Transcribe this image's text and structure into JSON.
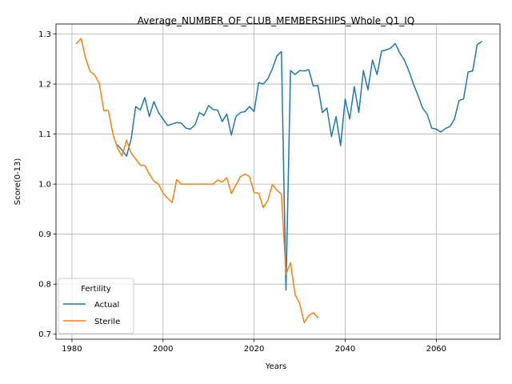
{
  "chart_data": {
    "type": "line",
    "title": "Average_NUMBER_OF_CLUB_MEMBERSHIPS_Whole_Q1_IQ",
    "xlabel": "Years",
    "ylabel": "Score(0-13)",
    "xlim": [
      1976.5,
      2074
    ],
    "ylim": [
      0.69,
      1.32
    ],
    "xticks": [
      1980,
      2000,
      2020,
      2040,
      2060
    ],
    "yticks": [
      0.7,
      0.8,
      0.9,
      1.0,
      1.1,
      1.2,
      1.3
    ],
    "grid": true,
    "legend": {
      "title": "Fertility",
      "position": "lower-left"
    },
    "series": [
      {
        "name": "Actual",
        "color": "#1f77b4",
        "x": [
          1990,
          1991,
          1992,
          1993,
          1994,
          1995,
          1996,
          1997,
          1998,
          1999,
          2000,
          2001,
          2002,
          2003,
          2004,
          2005,
          2006,
          2007,
          2008,
          2009,
          2010,
          2011,
          2012,
          2013,
          2014,
          2015,
          2016,
          2017,
          2018,
          2019,
          2020,
          2021,
          2022,
          2023,
          2024,
          2025,
          2026,
          2027,
          2028,
          2029,
          2030,
          2031,
          2032,
          2033,
          2034,
          2035,
          2036,
          2037,
          2038,
          2039,
          2040,
          2041,
          2042,
          2043,
          2044,
          2045,
          2046,
          2047,
          2048,
          2049,
          2050,
          2051,
          2052,
          2053,
          2054,
          2055,
          2056,
          2057,
          2058,
          2059,
          2060,
          2061,
          2062,
          2063,
          2064,
          2065,
          2066,
          2067,
          2068,
          2069,
          2070
        ],
        "values": [
          1.078,
          1.068,
          1.056,
          1.09,
          1.155,
          1.148,
          1.173,
          1.135,
          1.165,
          1.143,
          1.13,
          1.117,
          1.12,
          1.123,
          1.122,
          1.112,
          1.11,
          1.118,
          1.143,
          1.137,
          1.157,
          1.149,
          1.148,
          1.125,
          1.14,
          1.098,
          1.135,
          1.143,
          1.145,
          1.155,
          1.145,
          1.203,
          1.2,
          1.21,
          1.23,
          1.256,
          1.265,
          0.788,
          1.227,
          1.219,
          1.227,
          1.226,
          1.229,
          1.196,
          1.197,
          1.143,
          1.152,
          1.095,
          1.135,
          1.077,
          1.17,
          1.13,
          1.195,
          1.143,
          1.227,
          1.188,
          1.248,
          1.219,
          1.266,
          1.268,
          1.272,
          1.281,
          1.262,
          1.248,
          1.226,
          1.2,
          1.177,
          1.152,
          1.14,
          1.112,
          1.11,
          1.104,
          1.111,
          1.115,
          1.13,
          1.167,
          1.17,
          1.224,
          1.226,
          1.279,
          1.285
        ]
      },
      {
        "name": "Sterile",
        "color": "#ff7f0e",
        "x": [
          1981,
          1982,
          1983,
          1984,
          1985,
          1986,
          1987,
          1988,
          1989,
          1990,
          1991,
          1992,
          1993,
          1994,
          1995,
          1996,
          1997,
          1998,
          1999,
          2000,
          2001,
          2002,
          2003,
          2004,
          2005,
          2006,
          2007,
          2008,
          2009,
          2010,
          2011,
          2012,
          2013,
          2014,
          2015,
          2016,
          2017,
          2018,
          2019,
          2020,
          2021,
          2022,
          2023,
          2024,
          2025,
          2026,
          2027,
          2028,
          2029,
          2030,
          2031,
          2032,
          2033,
          2034
        ],
        "values": [
          1.281,
          1.291,
          1.252,
          1.225,
          1.218,
          1.201,
          1.147,
          1.147,
          1.1,
          1.072,
          1.056,
          1.088,
          1.062,
          1.05,
          1.038,
          1.037,
          1.02,
          1.006,
          1.0,
          0.982,
          0.972,
          0.963,
          1.009,
          1.0,
          1.0,
          1.0,
          1.0,
          1.0,
          1.0,
          1.0,
          1.0,
          1.008,
          1.004,
          1.013,
          0.981,
          0.998,
          1.015,
          1.02,
          1.015,
          0.983,
          0.982,
          0.953,
          0.967,
          0.999,
          0.988,
          0.98,
          0.82,
          0.843,
          0.779,
          0.762,
          0.723,
          0.737,
          0.743,
          0.733
        ]
      }
    ]
  }
}
